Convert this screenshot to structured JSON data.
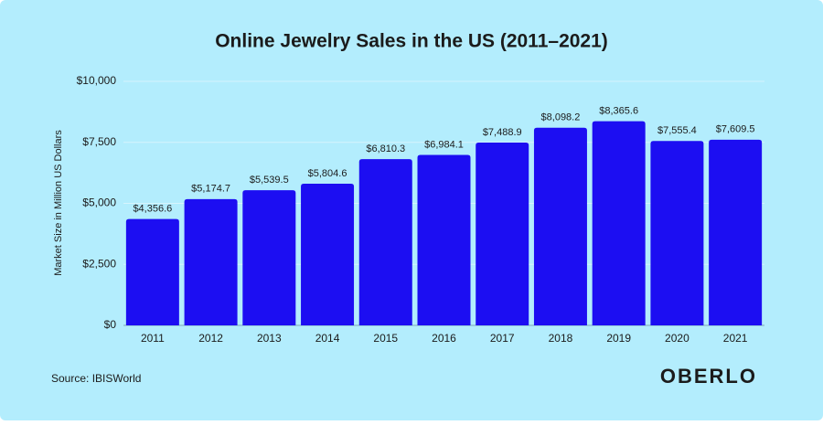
{
  "chart_data": {
    "type": "bar",
    "title": "Online Jewelry Sales in the US (2011–2021)",
    "y_label": "Market Size in Million US Dollars",
    "categories": [
      "2011",
      "2012",
      "2013",
      "2014",
      "2015",
      "2016",
      "2017",
      "2018",
      "2019",
      "2020",
      "2021"
    ],
    "values": [
      4356.6,
      5174.7,
      5539.5,
      5804.6,
      6810.3,
      6984.1,
      7488.9,
      8098.2,
      8365.6,
      7555.4,
      7609.5
    ],
    "value_labels": [
      "$4,356.6",
      "$5,174.7",
      "$5,539.5",
      "$5,804.6",
      "$6,810.3",
      "$6,984.1",
      "$7,488.9",
      "$8,098.2",
      "$8,365.6",
      "$7,555.4",
      "$7,609.5"
    ],
    "color": "#1c0ef2",
    "ylim": [
      0,
      10000
    ],
    "yticks": [
      {
        "value": 0,
        "label": "$0"
      },
      {
        "value": 2500,
        "label": "$2,500"
      },
      {
        "value": 5000,
        "label": "$5,000"
      },
      {
        "value": 7500,
        "label": "$7,500"
      },
      {
        "value": 10000,
        "label": "$10,000"
      }
    ],
    "grid": true,
    "source": "Source: IBISWorld",
    "brand": "OBERLO"
  }
}
